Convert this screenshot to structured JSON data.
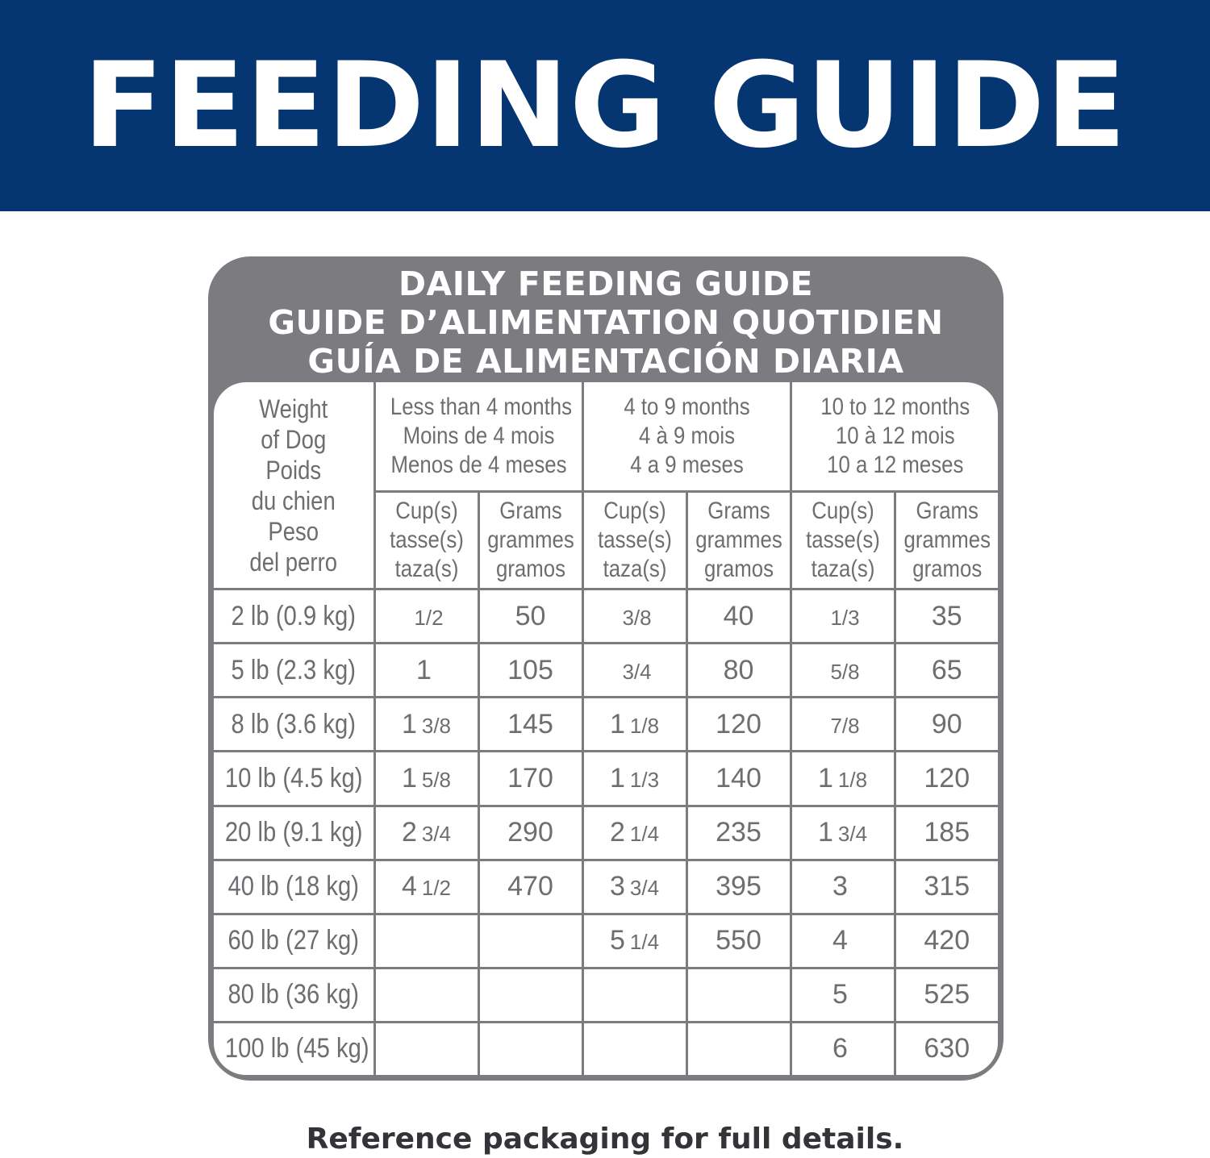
{
  "banner": {
    "title": "FEEDING GUIDE"
  },
  "guide": {
    "title_en": "DAILY FEEDING GUIDE",
    "title_fr": "GUIDE D’ALIMENTATION QUOTIDIEN",
    "title_es": "GUÍA DE ALIMENTACIÓN DIARIA",
    "weight_header": [
      "Weight",
      "of Dog",
      "Poids",
      "du chien",
      "Peso",
      "del perro"
    ],
    "age_groups": [
      [
        "Less than 4 months",
        "Moins de 4 mois",
        "Menos de 4 meses"
      ],
      [
        "4 to 9 months",
        "4 à 9 mois",
        "4 a 9 meses"
      ],
      [
        "10 to 12 months",
        "10 à 12 mois",
        "10 a 12 meses"
      ]
    ],
    "cup_header": [
      "Cup(s)",
      "tasse(s)",
      "taza(s)"
    ],
    "grams_header": [
      "Grams",
      "grammes",
      "gramos"
    ],
    "rows": [
      {
        "weight": "2 lb (0.9 kg)",
        "cells": [
          [
            "",
            "1/2"
          ],
          "50",
          [
            "",
            "3/8"
          ],
          "40",
          [
            "",
            "1/3"
          ],
          "35"
        ]
      },
      {
        "weight": "5 lb (2.3 kg)",
        "cells": [
          [
            "1",
            ""
          ],
          "105",
          [
            "",
            "3/4"
          ],
          "80",
          [
            "",
            "5/8"
          ],
          "65"
        ]
      },
      {
        "weight": "8 lb (3.6 kg)",
        "cells": [
          [
            "1",
            "3/8"
          ],
          "145",
          [
            "1",
            "1/8"
          ],
          "120",
          [
            "",
            "7/8"
          ],
          "90"
        ]
      },
      {
        "weight": "10 lb (4.5 kg)",
        "cells": [
          [
            "1",
            "5/8"
          ],
          "170",
          [
            "1",
            "1/3"
          ],
          "140",
          [
            "1",
            "1/8"
          ],
          "120"
        ]
      },
      {
        "weight": "20 lb (9.1 kg)",
        "cells": [
          [
            "2",
            "3/4"
          ],
          "290",
          [
            "2",
            "1/4"
          ],
          "235",
          [
            "1",
            "3/4"
          ],
          "185"
        ]
      },
      {
        "weight": "40 lb (18 kg)",
        "cells": [
          [
            "4",
            "1/2"
          ],
          "470",
          [
            "3",
            "3/4"
          ],
          "395",
          [
            "3",
            ""
          ],
          "315"
        ]
      },
      {
        "weight": "60 lb (27 kg)",
        "cells": [
          [
            "",
            ""
          ],
          "",
          [
            "5",
            "1/4"
          ],
          "550",
          [
            "4",
            ""
          ],
          "420"
        ]
      },
      {
        "weight": "80 lb (36 kg)",
        "cells": [
          [
            "",
            ""
          ],
          "",
          [
            "",
            ""
          ],
          "",
          [
            "5",
            ""
          ],
          "525"
        ]
      },
      {
        "weight": "100 lb (45 kg)",
        "cells": [
          [
            "",
            ""
          ],
          "",
          [
            "",
            ""
          ],
          "",
          [
            "6",
            ""
          ],
          "630"
        ]
      }
    ]
  },
  "footer": {
    "note": "Reference packaging for full details."
  },
  "colors": {
    "banner": "#053672",
    "card": "#7c7c80",
    "text_gray": "#6e6e72"
  }
}
